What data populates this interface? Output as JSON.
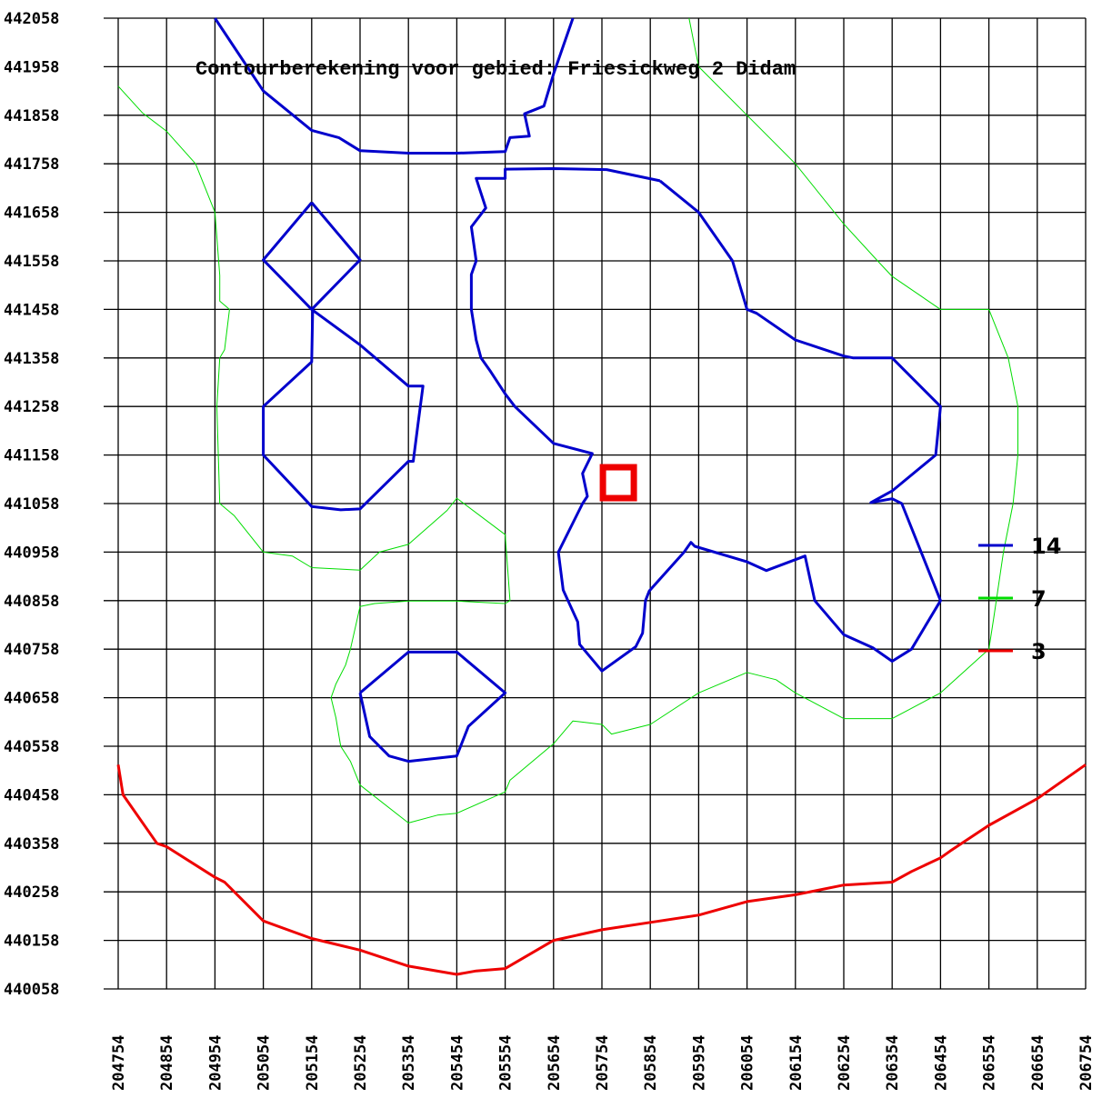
{
  "chart_data": {
    "type": "contour",
    "title": "Contourberekening voor gebied: Friesickweg 2 Didam",
    "xlim": [
      204754,
      206754
    ],
    "ylim": [
      440058,
      442058
    ],
    "x_ticks": [
      "204754",
      "204854",
      "204954",
      "205054",
      "205154",
      "205254",
      "205354",
      "205454",
      "205554",
      "205654",
      "205754",
      "205854",
      "205954",
      "206054",
      "206154",
      "206254",
      "206354",
      "206454",
      "206554",
      "206654",
      "206754"
    ],
    "y_ticks": [
      "442058",
      "441958",
      "441858",
      "441758",
      "441658",
      "441558",
      "441458",
      "441358",
      "441258",
      "441158",
      "441058",
      "440958",
      "440858",
      "440758",
      "440658",
      "440558",
      "440458",
      "440358",
      "440258",
      "440158",
      "440058"
    ],
    "grid": true,
    "legend_position": "right",
    "legend": [
      {
        "label": "14",
        "color": "#0000cc"
      },
      {
        "label": "7",
        "color": "#00dd00"
      },
      {
        "label": "3",
        "color": "#ee0000"
      }
    ],
    "marker": {
      "shape": "square",
      "color": "#ee0000",
      "x": 205788,
      "y": 441101
    },
    "contours": [
      {
        "level": "14",
        "color": "#0000cc",
        "width": 3,
        "paths": [
          [
            [
              204954,
              442058
            ],
            [
              205054,
              441908
            ],
            [
              205154,
              441827
            ],
            [
              205210,
              441812
            ],
            [
              205254,
              441785
            ],
            [
              205354,
              441780
            ],
            [
              205454,
              441780
            ],
            [
              205554,
              441783
            ],
            [
              205564,
              441812
            ],
            [
              205604,
              441815
            ],
            [
              205594,
              441861
            ],
            [
              205634,
              441877
            ],
            [
              205654,
              441943
            ],
            [
              205694,
              442058
            ]
          ],
          [
            [
              205154,
              441678
            ],
            [
              205254,
              441560
            ],
            [
              205154,
              441458
            ],
            [
              205054,
              441560
            ],
            [
              205154,
              441678
            ]
          ],
          [
            [
              205154,
              441458
            ],
            [
              205254,
              441385
            ],
            [
              205354,
              441300
            ],
            [
              205384,
              441300
            ],
            [
              205374,
              441223
            ],
            [
              205364,
              441145
            ],
            [
              205354,
              441145
            ],
            [
              205254,
              441047
            ],
            [
              205214,
              441045
            ],
            [
              205154,
              441052
            ],
            [
              205054,
              441158
            ],
            [
              205054,
              441258
            ],
            [
              205154,
              441350
            ],
            [
              205156,
              441458
            ]
          ],
          [
            [
              205874,
              441723
            ],
            [
              205764,
              441746
            ],
            [
              205654,
              441748
            ],
            [
              205554,
              441747
            ],
            [
              205554,
              441728
            ],
            [
              205494,
              441728
            ],
            [
              205514,
              441667
            ],
            [
              205484,
              441628
            ],
            [
              205494,
              441558
            ],
            [
              205484,
              441530
            ],
            [
              205484,
              441458
            ],
            [
              205494,
              441395
            ],
            [
              205504,
              441358
            ],
            [
              205524,
              441330
            ],
            [
              205554,
              441284
            ],
            [
              205574,
              441258
            ],
            [
              205654,
              441182
            ],
            [
              205734,
              441161
            ],
            [
              205714,
              441120
            ],
            [
              205724,
              441073
            ],
            [
              205714,
              441058
            ],
            [
              205664,
              440958
            ],
            [
              205674,
              440880
            ],
            [
              205704,
              440814
            ],
            [
              205708,
              440768
            ],
            [
              205754,
              440713
            ],
            [
              205824,
              440763
            ],
            [
              205838,
              440791
            ],
            [
              205844,
              440858
            ],
            [
              205852,
              440878
            ],
            [
              205924,
              440958
            ],
            [
              205938,
              440978
            ],
            [
              205946,
              440970
            ],
            [
              206054,
              440938
            ],
            [
              206094,
              440920
            ],
            [
              206174,
              440950
            ],
            [
              206194,
              440858
            ],
            [
              206254,
              440788
            ],
            [
              206314,
              440761
            ],
            [
              206354,
              440733
            ],
            [
              206394,
              440758
            ],
            [
              206454,
              440858
            ],
            [
              206374,
              441058
            ],
            [
              206354,
              441068
            ],
            [
              206310,
              441060
            ],
            [
              206354,
              441084
            ],
            [
              206444,
              441158
            ],
            [
              206454,
              441258
            ],
            [
              206354,
              441358
            ],
            [
              206274,
              441358
            ],
            [
              206254,
              441362
            ],
            [
              206154,
              441395
            ],
            [
              206074,
              441450
            ],
            [
              206054,
              441458
            ],
            [
              206024,
              441558
            ],
            [
              205954,
              441658
            ],
            [
              205874,
              441723
            ]
          ],
          [
            [
              205254,
              440668
            ],
            [
              205274,
              440578
            ],
            [
              205314,
              440538
            ],
            [
              205354,
              440527
            ],
            [
              205454,
              440538
            ],
            [
              205478,
              440599
            ],
            [
              205554,
              440668
            ],
            [
              205454,
              440752
            ],
            [
              205354,
              440752
            ],
            [
              205254,
              440668
            ]
          ]
        ]
      },
      {
        "level": "7",
        "color": "#00dd00",
        "width": 1,
        "paths": [
          [
            [
              204754,
              441918
            ],
            [
              204804,
              441863
            ],
            [
              204854,
              441825
            ],
            [
              204914,
              441758
            ],
            [
              204954,
              441658
            ],
            [
              204964,
              441528
            ],
            [
              204964,
              441475
            ],
            [
              204984,
              441458
            ],
            [
              204974,
              441375
            ],
            [
              204964,
              441358
            ],
            [
              204958,
              441258
            ],
            [
              204964,
              441058
            ],
            [
              204994,
              441033
            ],
            [
              205054,
              440958
            ],
            [
              205114,
              440950
            ],
            [
              205154,
              440926
            ],
            [
              205254,
              440921
            ],
            [
              205294,
              440958
            ],
            [
              205354,
              440974
            ],
            [
              205434,
              441044
            ],
            [
              205454,
              441069
            ],
            [
              205554,
              440994
            ],
            [
              205564,
              440858
            ],
            [
              205554,
              440852
            ],
            [
              205454,
              440857
            ],
            [
              205354,
              440857
            ],
            [
              205284,
              440852
            ],
            [
              205254,
              440846
            ],
            [
              205234,
              440758
            ],
            [
              205224,
              440725
            ],
            [
              205204,
              440686
            ],
            [
              205194,
              440658
            ],
            [
              205204,
              440617
            ],
            [
              205214,
              440558
            ],
            [
              205234,
              440527
            ],
            [
              205254,
              440478
            ],
            [
              205354,
              440400
            ],
            [
              205414,
              440416
            ],
            [
              205454,
              440420
            ],
            [
              205554,
              440464
            ],
            [
              205564,
              440488
            ],
            [
              205654,
              440563
            ],
            [
              205694,
              440610
            ],
            [
              205754,
              440603
            ],
            [
              205774,
              440583
            ],
            [
              205854,
              440603
            ],
            [
              205954,
              440668
            ],
            [
              206054,
              440710
            ],
            [
              206114,
              440695
            ],
            [
              206154,
              440668
            ],
            [
              206254,
              440615
            ],
            [
              206354,
              440615
            ],
            [
              206454,
              440668
            ],
            [
              206554,
              440758
            ],
            [
              206564,
              440822
            ],
            [
              206584,
              440958
            ],
            [
              206604,
              441058
            ],
            [
              206614,
              441158
            ],
            [
              206614,
              441258
            ],
            [
              206594,
              441358
            ],
            [
              206554,
              441458
            ],
            [
              206454,
              441458
            ],
            [
              206354,
              441526
            ],
            [
              206324,
              441558
            ],
            [
              206254,
              441634
            ],
            [
              206154,
              441758
            ],
            [
              206054,
              441858
            ],
            [
              205954,
              441958
            ],
            [
              205934,
              442058
            ]
          ]
        ]
      },
      {
        "level": "3",
        "color": "#ee0000",
        "width": 3,
        "paths": [
          [
            [
              204754,
              440520
            ],
            [
              204764,
              440458
            ],
            [
              204834,
              440358
            ],
            [
              204854,
              440351
            ],
            [
              204954,
              440288
            ],
            [
              204974,
              440278
            ],
            [
              205054,
              440198
            ],
            [
              205154,
              440162
            ],
            [
              205254,
              440138
            ],
            [
              205354,
              440105
            ],
            [
              205454,
              440088
            ],
            [
              205494,
              440095
            ],
            [
              205554,
              440100
            ],
            [
              205654,
              440158
            ],
            [
              205754,
              440180
            ],
            [
              205854,
              440195
            ],
            [
              205954,
              440210
            ],
            [
              206054,
              440238
            ],
            [
              206154,
              440252
            ],
            [
              206254,
              440272
            ],
            [
              206354,
              440278
            ],
            [
              206394,
              440300
            ],
            [
              206454,
              440328
            ],
            [
              206474,
              440342
            ],
            [
              206554,
              440395
            ],
            [
              206654,
              440450
            ],
            [
              206754,
              440520
            ]
          ]
        ]
      }
    ]
  }
}
